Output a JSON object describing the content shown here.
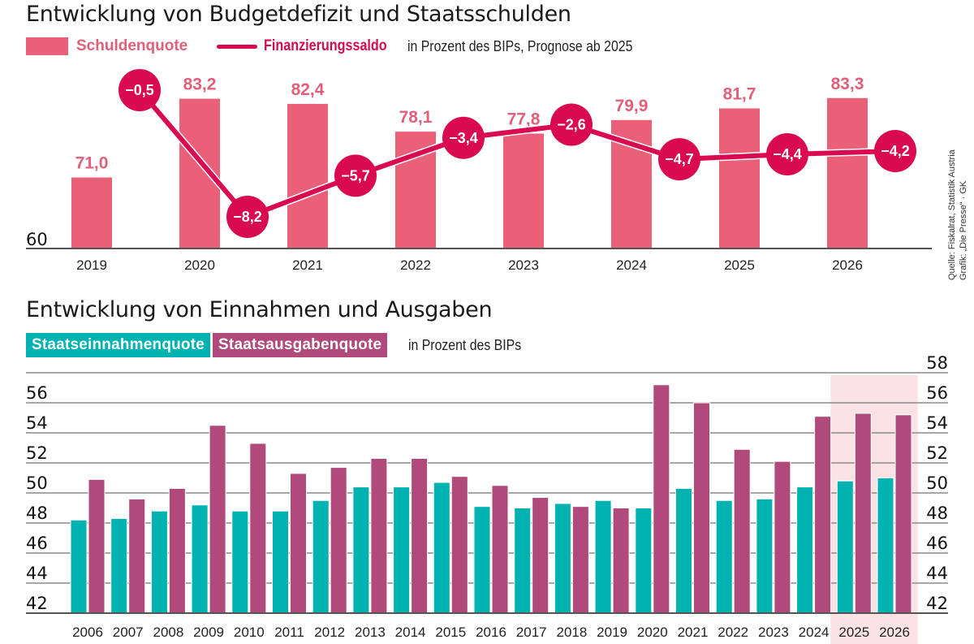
{
  "colors": {
    "debt_bar": "#ea6079",
    "debt_label": "#e0607a",
    "saldo": "#d90a4f",
    "revenue": "#00b2b0",
    "expenditure": "#b04a7a",
    "forecast_bg": "#fbe3e5",
    "grid": "#8a8a8a",
    "axis": "#555555"
  },
  "source": {
    "line1": "Quelle: Fiskalrat, Statistik Austria",
    "line2": "Grafik: „Die Presse“ · GK"
  },
  "chart_data": [
    {
      "type": "bar",
      "title": "Entwicklung von Budgetdefizit und Staatsschulden",
      "subtitle": "in Prozent des BIPs, Prognose ab 2025",
      "legend": [
        {
          "name": "Schuldenquote",
          "kind": "bar"
        },
        {
          "name": "Finanzierungssaldo",
          "kind": "line"
        }
      ],
      "legend_position": "top-left",
      "categories": [
        "2019",
        "2020",
        "2021",
        "2022",
        "2023",
        "2024",
        "2025",
        "2026"
      ],
      "series": [
        {
          "name": "Schuldenquote",
          "type": "bar",
          "values": [
            71.0,
            83.2,
            82.4,
            78.1,
            77.8,
            79.9,
            81.7,
            83.3
          ],
          "labels": [
            "71,0",
            "83,2",
            "82,4",
            "78,1",
            "77,8",
            "79,9",
            "81,7",
            "83,3"
          ]
        },
        {
          "name": "Finanzierungssaldo",
          "type": "line",
          "values": [
            -0.5,
            -8.2,
            -5.7,
            -3.4,
            -2.6,
            -4.7,
            -4.4,
            -4.2
          ],
          "labels": [
            "−0,5",
            "−8,2",
            "−5,7",
            "−3,4",
            "−2,6",
            "−4,7",
            "−4,4",
            "−4,2"
          ]
        }
      ],
      "y_axis_label_visible": "60",
      "ylim": [
        60,
        85
      ],
      "saldo_range": [
        -9,
        0
      ],
      "grid": false,
      "xlabel": "",
      "ylabel": ""
    },
    {
      "type": "bar",
      "title": "Entwicklung von Einnahmen und Ausgaben",
      "subtitle": "in Prozent des BIPs",
      "legend": [
        {
          "name": "Staatseinnahmenquote"
        },
        {
          "name": "Staatsausgabenquote"
        }
      ],
      "legend_position": "top-left",
      "categories": [
        "2006",
        "2007",
        "2008",
        "2009",
        "2010",
        "2011",
        "2012",
        "2013",
        "2014",
        "2015",
        "2016",
        "2017",
        "2018",
        "2019",
        "2020",
        "2021",
        "2022",
        "2023",
        "2024",
        "2025",
        "2026"
      ],
      "series": [
        {
          "name": "Staatseinnahmenquote",
          "values": [
            48.2,
            48.3,
            48.8,
            49.2,
            48.8,
            48.8,
            49.5,
            50.4,
            50.4,
            50.7,
            49.1,
            49.0,
            49.3,
            49.5,
            49.0,
            50.3,
            49.5,
            49.6,
            50.4,
            50.8,
            51.0
          ]
        },
        {
          "name": "Staatsausgabenquote",
          "values": [
            50.9,
            49.6,
            50.3,
            54.5,
            53.3,
            51.3,
            51.7,
            52.3,
            52.3,
            51.1,
            50.5,
            49.7,
            49.1,
            49.0,
            57.2,
            56.0,
            52.9,
            52.1,
            55.1,
            55.3,
            55.2
          ]
        }
      ],
      "forecast_categories": [
        "2025",
        "2026"
      ],
      "y_ticks_left": [
        "42",
        "44",
        "46",
        "48",
        "50",
        "52",
        "54",
        "56"
      ],
      "y_ticks_right": [
        "42",
        "44",
        "46",
        "48",
        "50",
        "52",
        "54",
        "56",
        "58"
      ],
      "ylim": [
        42,
        58
      ],
      "grid": true,
      "xlabel": "",
      "ylabel": ""
    }
  ]
}
